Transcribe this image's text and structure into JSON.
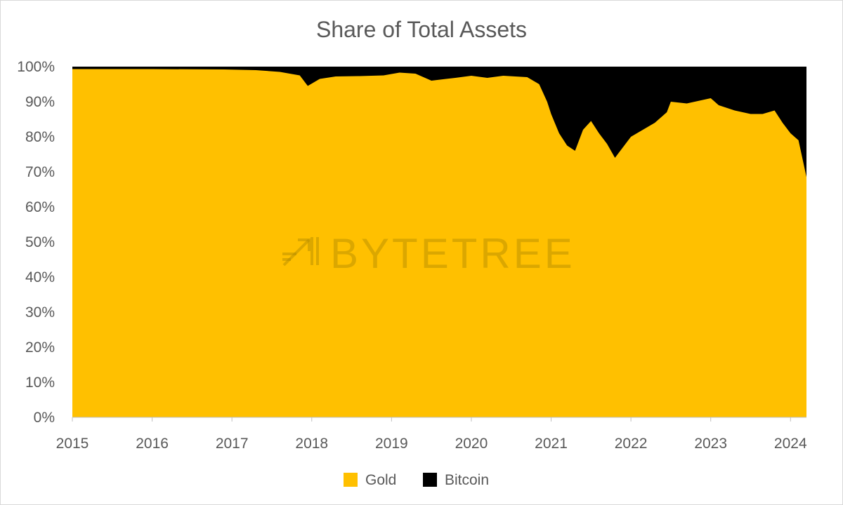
{
  "chart_data": {
    "type": "area",
    "stacked": "percent",
    "title": "Share of Total Assets",
    "xlabel": "",
    "ylabel": "",
    "x_ticks": [
      "2015",
      "2016",
      "2017",
      "2018",
      "2019",
      "2020",
      "2021",
      "2022",
      "2023",
      "2024"
    ],
    "y_ticks": [
      "0%",
      "10%",
      "20%",
      "30%",
      "40%",
      "50%",
      "60%",
      "70%",
      "80%",
      "90%",
      "100%"
    ],
    "xlim": [
      2015.0,
      2024.2
    ],
    "ylim": [
      0,
      100
    ],
    "grid": false,
    "legend_position": "bottom",
    "watermark": "BYTETREE",
    "colors": {
      "Gold": "#ffc000",
      "Bitcoin": "#000000"
    },
    "x": [
      2015.0,
      2016.0,
      2016.9,
      2017.3,
      2017.6,
      2017.85,
      2017.95,
      2018.1,
      2018.3,
      2018.6,
      2018.9,
      2019.1,
      2019.3,
      2019.5,
      2019.8,
      2020.0,
      2020.2,
      2020.4,
      2020.7,
      2020.85,
      2020.95,
      2021.0,
      2021.1,
      2021.2,
      2021.3,
      2021.4,
      2021.5,
      2021.6,
      2021.7,
      2021.8,
      2021.9,
      2022.0,
      2022.15,
      2022.3,
      2022.45,
      2022.5,
      2022.7,
      2022.9,
      2023.0,
      2023.1,
      2023.3,
      2023.5,
      2023.65,
      2023.8,
      2023.9,
      2024.0,
      2024.1,
      2024.2
    ],
    "series": [
      {
        "name": "Gold",
        "values": [
          99.3,
          99.3,
          99.2,
          99.0,
          98.5,
          97.5,
          94.5,
          96.5,
          97.2,
          97.3,
          97.5,
          98.3,
          98.0,
          96.0,
          96.8,
          97.4,
          96.8,
          97.4,
          97.0,
          95.0,
          90.0,
          86.5,
          81.0,
          77.5,
          76.0,
          82.0,
          84.5,
          81.0,
          78.0,
          74.0,
          77.0,
          80.0,
          82.0,
          84.0,
          87.0,
          90.0,
          89.5,
          90.5,
          91.0,
          89.0,
          87.5,
          86.5,
          86.5,
          87.5,
          84.0,
          81.0,
          79.0,
          68.5
        ]
      },
      {
        "name": "Bitcoin",
        "values": [
          0.7,
          0.7,
          0.8,
          1.0,
          1.5,
          2.5,
          5.5,
          3.5,
          2.8,
          2.7,
          2.5,
          1.7,
          2.0,
          4.0,
          3.2,
          2.6,
          3.2,
          2.6,
          3.0,
          5.0,
          10.0,
          13.5,
          19.0,
          22.5,
          24.0,
          18.0,
          15.5,
          19.0,
          22.0,
          26.0,
          23.0,
          20.0,
          18.0,
          16.0,
          13.0,
          10.0,
          10.5,
          9.5,
          9.0,
          11.0,
          12.5,
          13.5,
          13.5,
          12.5,
          16.0,
          19.0,
          21.0,
          31.5
        ]
      }
    ]
  }
}
